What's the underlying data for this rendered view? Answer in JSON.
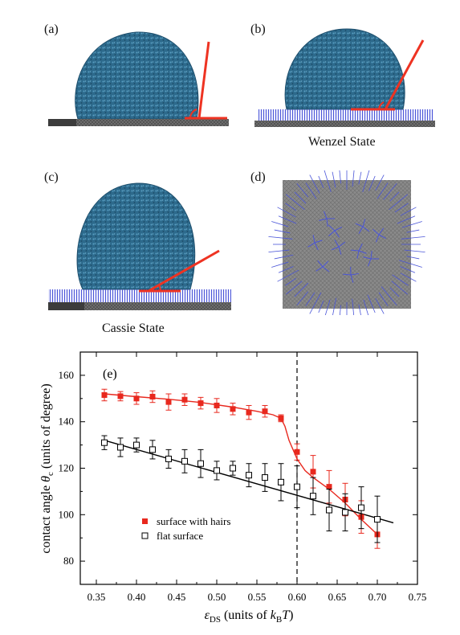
{
  "panels": {
    "a": {
      "label": "(a)"
    },
    "b": {
      "label": "(b)",
      "caption": "Wenzel State"
    },
    "c": {
      "label": "(c)",
      "caption": "Cassie State"
    },
    "d": {
      "label": "(d)"
    }
  },
  "colors": {
    "droplet": "#2f6f92",
    "droplet_dark": "#1d4e6c",
    "tangent": "#ee3322",
    "substrate": "#555555",
    "hairs": "#4a55d8",
    "series_hairs": "#e8281e",
    "series_flat": "#000000"
  },
  "chart_data": {
    "type": "scatter",
    "panel_label": "(e)",
    "ylabel_main": "contact angle ",
    "ylabel_symbol": "θ",
    "ylabel_sub": "c",
    "ylabel_units": " (units of degree)",
    "xlabel_symbol": "ε",
    "xlabel_sub": "DS",
    "xlabel_units": " (units of ",
    "xlabel_k": "k",
    "xlabel_ksub": "B",
    "xlabel_T": "T",
    "xlabel_close": ")",
    "xlim": [
      0.33,
      0.75
    ],
    "ylim": [
      70,
      170
    ],
    "xticks": [
      "0.35",
      "0.40",
      "0.45",
      "0.50",
      "0.55",
      "0.60",
      "0.65",
      "0.70",
      "0.75"
    ],
    "xtick_values": [
      0.35,
      0.4,
      0.45,
      0.5,
      0.55,
      0.6,
      0.65,
      0.7,
      0.75
    ],
    "yticks": [
      "80",
      "100",
      "120",
      "140",
      "160"
    ],
    "ytick_values": [
      80,
      100,
      120,
      140,
      160
    ],
    "vline_x": 0.6,
    "legend_position": "lower-left",
    "series": [
      {
        "name": "surface with hairs",
        "marker": "filled-square",
        "x": [
          0.36,
          0.38,
          0.4,
          0.42,
          0.44,
          0.46,
          0.48,
          0.5,
          0.52,
          0.54,
          0.56,
          0.58,
          0.6,
          0.62,
          0.64,
          0.66,
          0.68,
          0.7
        ],
        "y": [
          151.5,
          151,
          150,
          150.8,
          148.5,
          149.5,
          148,
          147,
          145.5,
          144,
          144.5,
          141.5,
          127,
          118.5,
          112,
          106.5,
          99,
          91.5
        ],
        "err": [
          2.5,
          2,
          2.5,
          2.5,
          3.5,
          2.5,
          2.5,
          3,
          2.5,
          3,
          2.5,
          1.5,
          3.5,
          7,
          7,
          7,
          7,
          6
        ]
      },
      {
        "name": "flat surface",
        "marker": "open-square",
        "x": [
          0.36,
          0.38,
          0.4,
          0.42,
          0.44,
          0.46,
          0.48,
          0.5,
          0.52,
          0.54,
          0.56,
          0.58,
          0.6,
          0.62,
          0.64,
          0.66,
          0.68,
          0.7
        ],
        "y": [
          131,
          129,
          130,
          128,
          124,
          123,
          122,
          119,
          120,
          117,
          116,
          114,
          112,
          108,
          102,
          101,
          103,
          98
        ],
        "err": [
          3,
          4,
          3,
          4,
          4,
          5,
          6,
          4,
          3,
          5,
          6,
          8,
          9,
          8,
          9,
          8,
          9,
          10
        ]
      }
    ],
    "fit_flat": {
      "x": [
        0.36,
        0.72
      ],
      "y": [
        132,
        96.5
      ]
    },
    "fit_hairs": {
      "x": [
        0.36,
        0.4,
        0.44,
        0.48,
        0.52,
        0.55,
        0.57,
        0.58,
        0.585,
        0.59,
        0.6,
        0.61,
        0.62,
        0.64,
        0.66,
        0.68,
        0.7
      ],
      "y": [
        152,
        150.8,
        149.7,
        148.3,
        146.3,
        144.5,
        143,
        141.5,
        138,
        132,
        124,
        119,
        116,
        111,
        105,
        98,
        91.5
      ]
    }
  }
}
